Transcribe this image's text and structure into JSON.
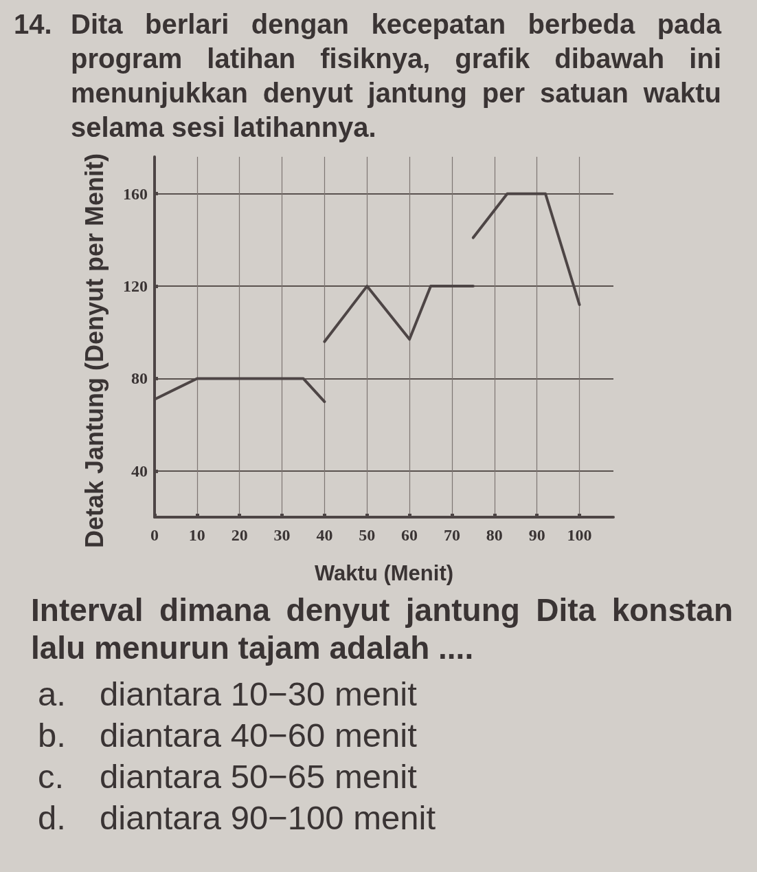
{
  "chart_data": {
    "type": "line",
    "title": "14. Dita berlari dengan kecepatan berbeda pada program latihan fisiknya, grafik dibawah ini menunjukkan denyut jantung per satuan waktu selama sesi latihannya.",
    "xlabel": "Waktu (Menit)",
    "ylabel": "Detak Jantung (Denyut per Menit)",
    "series": [
      {
        "color": "#4d4545",
        "x": [
          0,
          10,
          35,
          40
        ],
        "values": [
          71,
          80,
          80,
          70
        ]
      },
      {
        "color": "#4d4545",
        "x": [
          40,
          50,
          60,
          65,
          75
        ],
        "values": [
          96,
          120,
          97,
          120,
          120
        ]
      },
      {
        "color": "#4d4545",
        "x": [
          75,
          83,
          92,
          100
        ],
        "values": [
          141,
          160,
          160,
          112
        ]
      }
    ],
    "xlim": [
      0,
      108
    ],
    "ylim": [
      20,
      176
    ],
    "xticks": [
      0,
      10,
      20,
      30,
      40,
      50,
      60,
      70,
      80,
      90,
      100
    ],
    "yticks": [
      40,
      80,
      120,
      160
    ],
    "grid": true,
    "marker": "none",
    "line_style": "solid",
    "annotations": [
      "Interval dimana denyut jantung Dita konstan lalu menurun tajam adalah ....",
      "a. diantara 10−30 menit",
      "b. diantara 40−60 menit",
      "c. diantara 50−65 menit",
      "d. diantara 90−100 menit"
    ]
  }
}
